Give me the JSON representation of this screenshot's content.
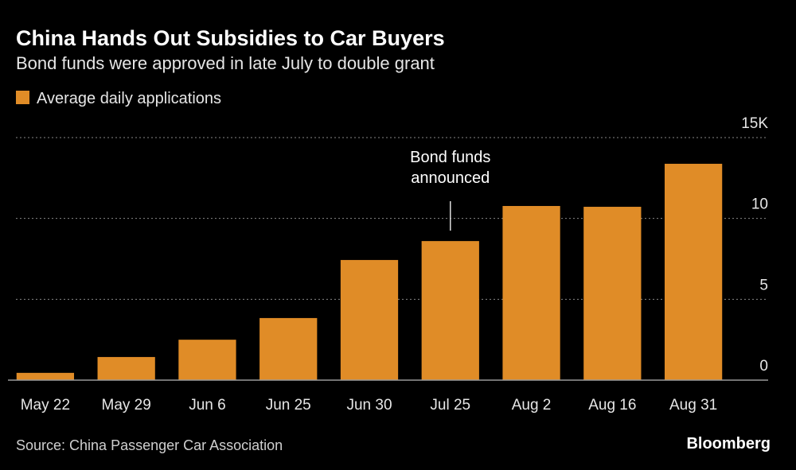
{
  "chart_data": {
    "type": "bar",
    "title": "China Hands Out Subsidies to Car Buyers",
    "subtitle": "Bond funds were approved in late July to double grant",
    "categories": [
      "May 22",
      "May 29",
      "Jun 6",
      "Jun 25",
      "Jun 30",
      "Jul 25",
      "Aug 2",
      "Aug 16",
      "Aug 31"
    ],
    "series": [
      {
        "name": "Average daily applications",
        "color": "#e08c27",
        "values": [
          0.45,
          1.43,
          2.5,
          3.84,
          7.43,
          8.6,
          10.77,
          10.72,
          13.38
        ]
      }
    ],
    "ylim": [
      0,
      15
    ],
    "yticks": [
      0,
      5,
      10,
      {
        "value": 15,
        "label": "15K"
      }
    ],
    "grid": true,
    "annotation": [
      "Bond funds",
      "announced"
    ],
    "source": "Source: China Passenger Car Association",
    "brand": "Bloomberg"
  }
}
